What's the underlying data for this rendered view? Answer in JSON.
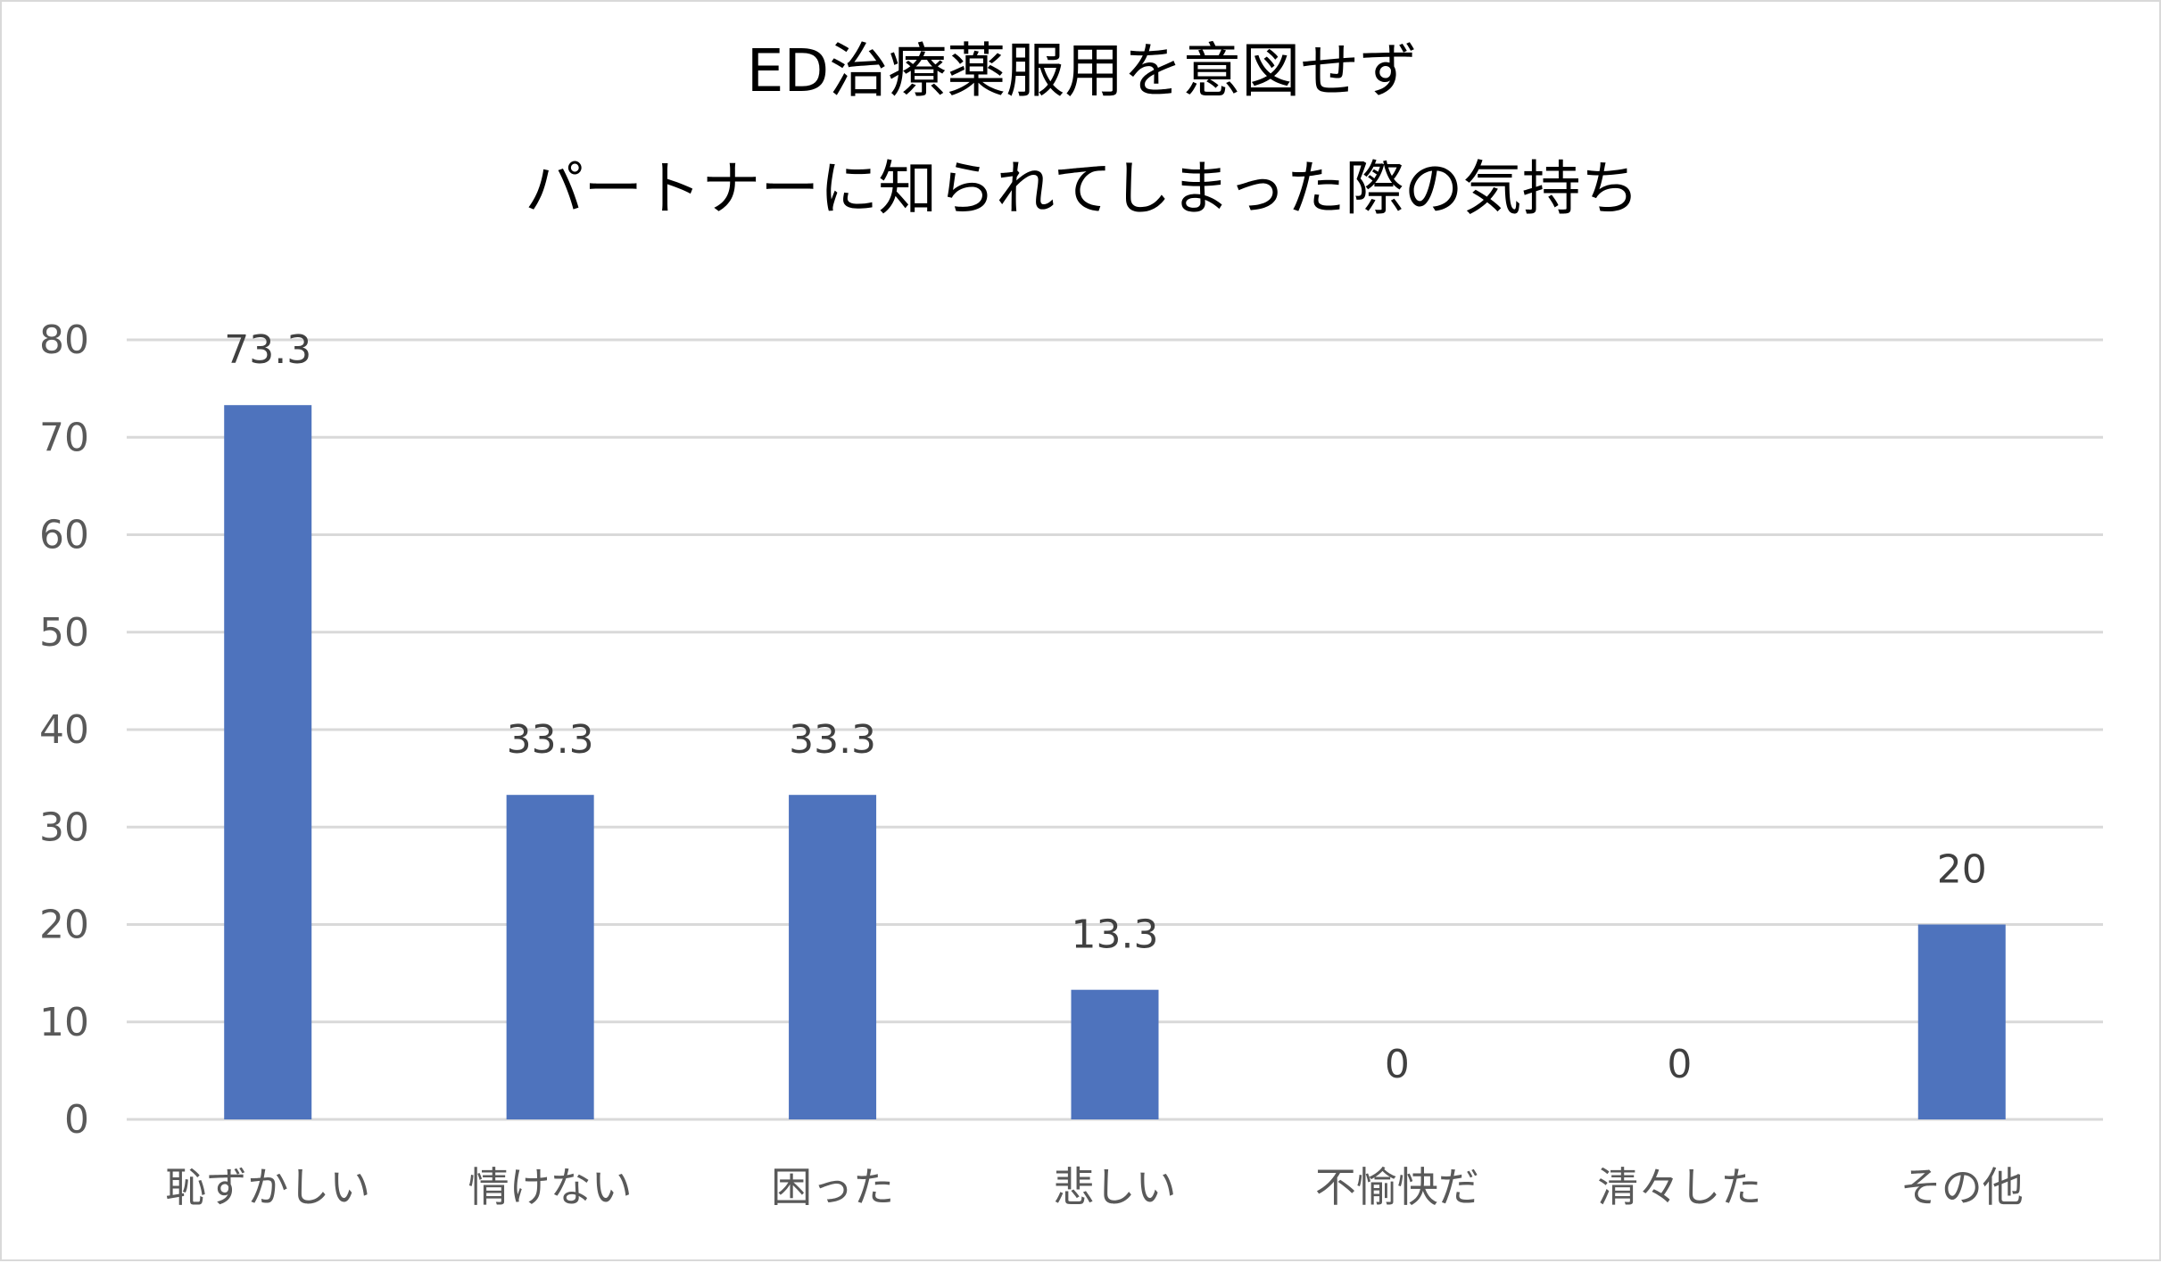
{
  "chart_data": {
    "type": "bar",
    "title_lines": [
      "ED治療薬服用を意図せず",
      "パートナーに知られてしまった際の気持ち"
    ],
    "categories": [
      "恥ずかしい",
      "情けない",
      "困った",
      "悲しい",
      "不愉快だ",
      "清々した",
      "その他"
    ],
    "values": [
      73.3,
      33.3,
      33.3,
      13.3,
      0,
      0,
      20
    ],
    "data_labels": [
      "73.3",
      "33.3",
      "33.3",
      "13.3",
      "0",
      "0",
      "20"
    ],
    "yticks": [
      0,
      10,
      20,
      30,
      40,
      50,
      60,
      70,
      80
    ],
    "ylim": [
      0,
      80
    ],
    "grid": true,
    "legend": "none",
    "bar_color": "#4e73bd"
  }
}
